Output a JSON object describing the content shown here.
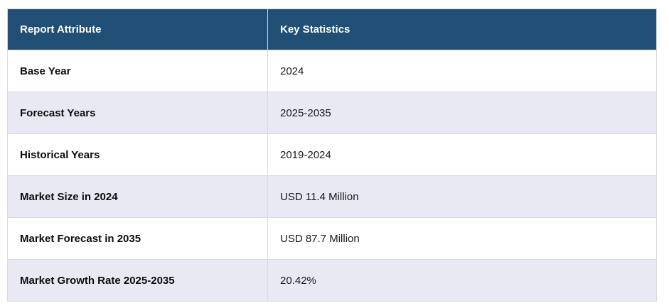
{
  "colors": {
    "header_background": "#204E74",
    "header_text": "#FFFFFF",
    "row_background": "#FFFFFF",
    "row_alternate_background": "#E8E9F3",
    "border": "#D9DADE",
    "body_text": "#1A1A1A"
  },
  "table": {
    "columns": [
      {
        "label": "Report Attribute"
      },
      {
        "label": "Key Statistics"
      }
    ],
    "rows": [
      {
        "attribute": "Base Year",
        "statistic": "2024"
      },
      {
        "attribute": "Forecast Years",
        "statistic": "2025-2035"
      },
      {
        "attribute": "Historical Years",
        "statistic": "2019-2024"
      },
      {
        "attribute": "Market Size in 2024",
        "statistic": "USD 11.4 Million"
      },
      {
        "attribute": "Market Forecast in 2035",
        "statistic": "USD 87.7 Million"
      },
      {
        "attribute": "Market Growth Rate 2025-2035",
        "statistic": "20.42%"
      }
    ]
  }
}
